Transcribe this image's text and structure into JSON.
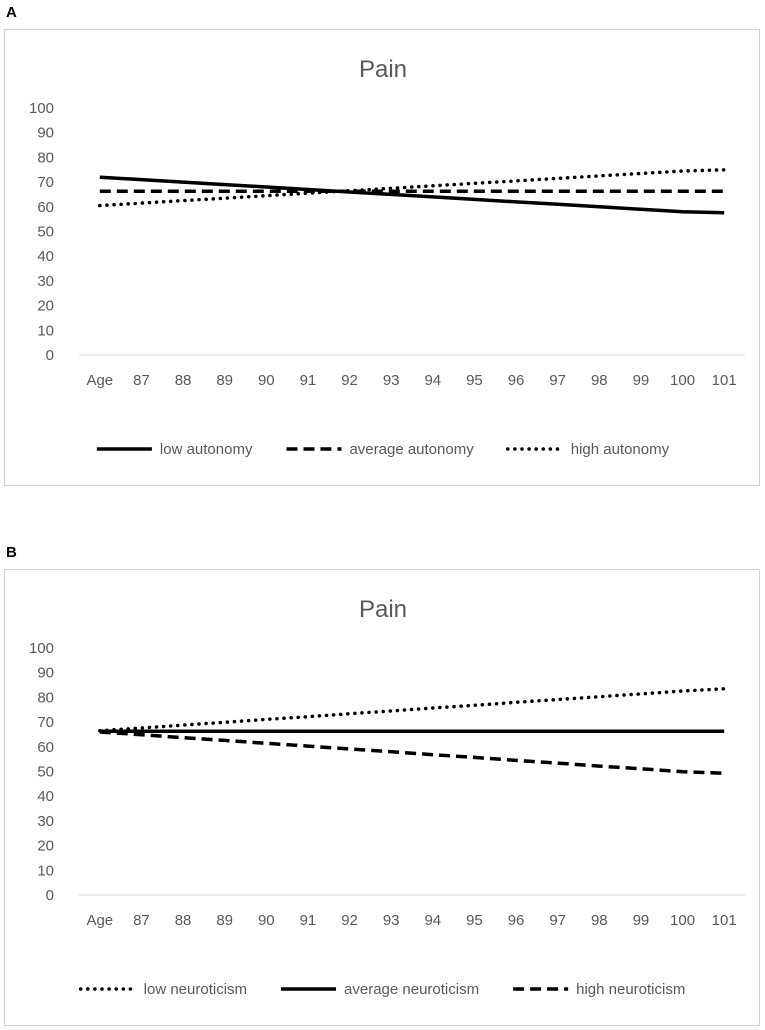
{
  "panels": [
    {
      "label": "A",
      "chart_data": {
        "type": "line",
        "title": "Pain",
        "categories": [
          "Age",
          "87",
          "88",
          "89",
          "90",
          "91",
          "92",
          "93",
          "94",
          "95",
          "96",
          "97",
          "98",
          "99",
          "100",
          "101"
        ],
        "ylim": [
          0,
          100
        ],
        "yticks": [
          0,
          10,
          20,
          30,
          40,
          50,
          60,
          70,
          80,
          90,
          100
        ],
        "xlabel": "",
        "ylabel": "",
        "legend_position": "bottom",
        "series": [
          {
            "name": "low autonomy",
            "style": "solid",
            "values": [
              72,
              71,
              70,
              69,
              68,
              67,
              66,
              65,
              64,
              63,
              62,
              61,
              60,
              59,
              58,
              57.6
            ]
          },
          {
            "name": "average autonomy",
            "style": "dashed",
            "values": [
              66.3,
              66.3,
              66.3,
              66.3,
              66.3,
              66.3,
              66.3,
              66.3,
              66.3,
              66.3,
              66.3,
              66.3,
              66.3,
              66.3,
              66.3,
              66.3
            ]
          },
          {
            "name": "high autonomy",
            "style": "dotted",
            "values": [
              60.5,
              61.5,
              62.5,
              63.5,
              64.5,
              65.5,
              66.5,
              67.5,
              68.5,
              69.5,
              70.5,
              71.5,
              72.5,
              73.5,
              74.5,
              75
            ]
          }
        ]
      }
    },
    {
      "label": "B",
      "chart_data": {
        "type": "line",
        "title": "Pain",
        "categories": [
          "Age",
          "87",
          "88",
          "89",
          "90",
          "91",
          "92",
          "93",
          "94",
          "95",
          "96",
          "97",
          "98",
          "99",
          "100",
          "101"
        ],
        "ylim": [
          0,
          100
        ],
        "yticks": [
          0,
          10,
          20,
          30,
          40,
          50,
          60,
          70,
          80,
          90,
          100
        ],
        "xlabel": "",
        "ylabel": "",
        "legend_position": "bottom",
        "series": [
          {
            "name": "low neuroticism",
            "style": "dotted",
            "values": [
              66.5,
              67.6,
              68.8,
              69.9,
              71.1,
              72.2,
              73.4,
              74.5,
              75.7,
              76.8,
              78,
              79.1,
              80.3,
              81.4,
              82.6,
              83.5
            ]
          },
          {
            "name": "average neuroticism",
            "style": "solid",
            "values": [
              66.3,
              66.3,
              66.3,
              66.3,
              66.3,
              66.3,
              66.3,
              66.3,
              66.3,
              66.3,
              66.3,
              66.3,
              66.3,
              66.3,
              66.3,
              66.3
            ]
          },
          {
            "name": "high neuroticism",
            "style": "dashed",
            "values": [
              66,
              64.9,
              63.7,
              62.6,
              61.4,
              60.3,
              59.1,
              58,
              56.8,
              55.7,
              54.5,
              53.4,
              52.2,
              51.1,
              49.9,
              49.3
            ]
          }
        ]
      }
    }
  ],
  "colors": {
    "line": "#000000",
    "axis": "#d9d9d9",
    "text": "#595959"
  }
}
